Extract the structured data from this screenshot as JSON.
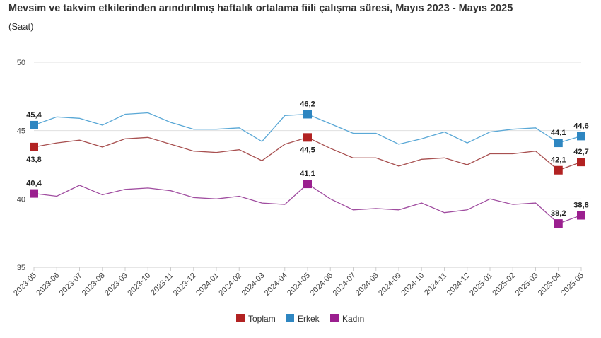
{
  "chart_data": {
    "type": "line",
    "title": "Mevsim ve takvim etkilerinden arındırılmış haftalık ortalama fiili çalışma süresi, Mayıs 2023 - Mayıs 2025",
    "subtitle": "(Saat)",
    "categories": [
      "2023-05",
      "2023-06",
      "2023-07",
      "2023-08",
      "2023-09",
      "2023-10",
      "2023-11",
      "2023-12",
      "2024-01",
      "2024-02",
      "2024-03",
      "2024-04",
      "2024-05",
      "2024-06",
      "2024-07",
      "2024-08",
      "2024-09",
      "2024-10",
      "2024-11",
      "2024-12",
      "2025-01",
      "2025-02",
      "2025-03",
      "2025-04",
      "2025-05"
    ],
    "ylim": [
      35,
      50
    ],
    "yticks": [
      "35",
      "40",
      "45",
      "50"
    ],
    "grid": true,
    "legend_position": "bottom",
    "series": [
      {
        "name": "Toplam",
        "color": "#b22222",
        "line_color": "#a85050",
        "values": [
          43.8,
          44.1,
          44.3,
          43.8,
          44.4,
          44.5,
          44.0,
          43.5,
          43.4,
          43.6,
          42.8,
          44.0,
          44.5,
          43.7,
          43.0,
          43.0,
          42.4,
          42.9,
          43.0,
          42.5,
          43.3,
          43.3,
          43.5,
          42.1,
          42.7
        ],
        "labels": {
          "0": "43,8",
          "12": "44,5",
          "23": "42,1",
          "24": "42,7"
        },
        "label_pos": {
          "0": "below",
          "12": "below",
          "23": "above",
          "24": "above"
        }
      },
      {
        "name": "Erkek",
        "color": "#2e86c1",
        "line_color": "#5aa8d6",
        "values": [
          45.4,
          46.0,
          45.9,
          45.4,
          46.2,
          46.3,
          45.6,
          45.1,
          45.1,
          45.2,
          44.2,
          46.1,
          46.2,
          45.5,
          44.8,
          44.8,
          44.0,
          44.4,
          44.9,
          44.1,
          44.9,
          45.1,
          45.2,
          44.1,
          44.6
        ],
        "labels": {
          "0": "45,4",
          "12": "46,2",
          "23": "44,1",
          "24": "44,6"
        },
        "label_pos": {
          "0": "above",
          "12": "above",
          "23": "above",
          "24": "above"
        }
      },
      {
        "name": "Kadın",
        "color": "#9b1f8f",
        "line_color": "#a04da0",
        "values": [
          40.4,
          40.2,
          41.0,
          40.3,
          40.7,
          40.8,
          40.6,
          40.1,
          40.0,
          40.2,
          39.7,
          39.6,
          41.1,
          40.0,
          39.2,
          39.3,
          39.2,
          39.7,
          39.0,
          39.2,
          40.0,
          39.6,
          39.7,
          38.2,
          38.8
        ],
        "labels": {
          "0": "40,4",
          "12": "41,1",
          "23": "38,2",
          "24": "38,8"
        },
        "label_pos": {
          "0": "above",
          "12": "above",
          "23": "above",
          "24": "above"
        }
      }
    ]
  }
}
